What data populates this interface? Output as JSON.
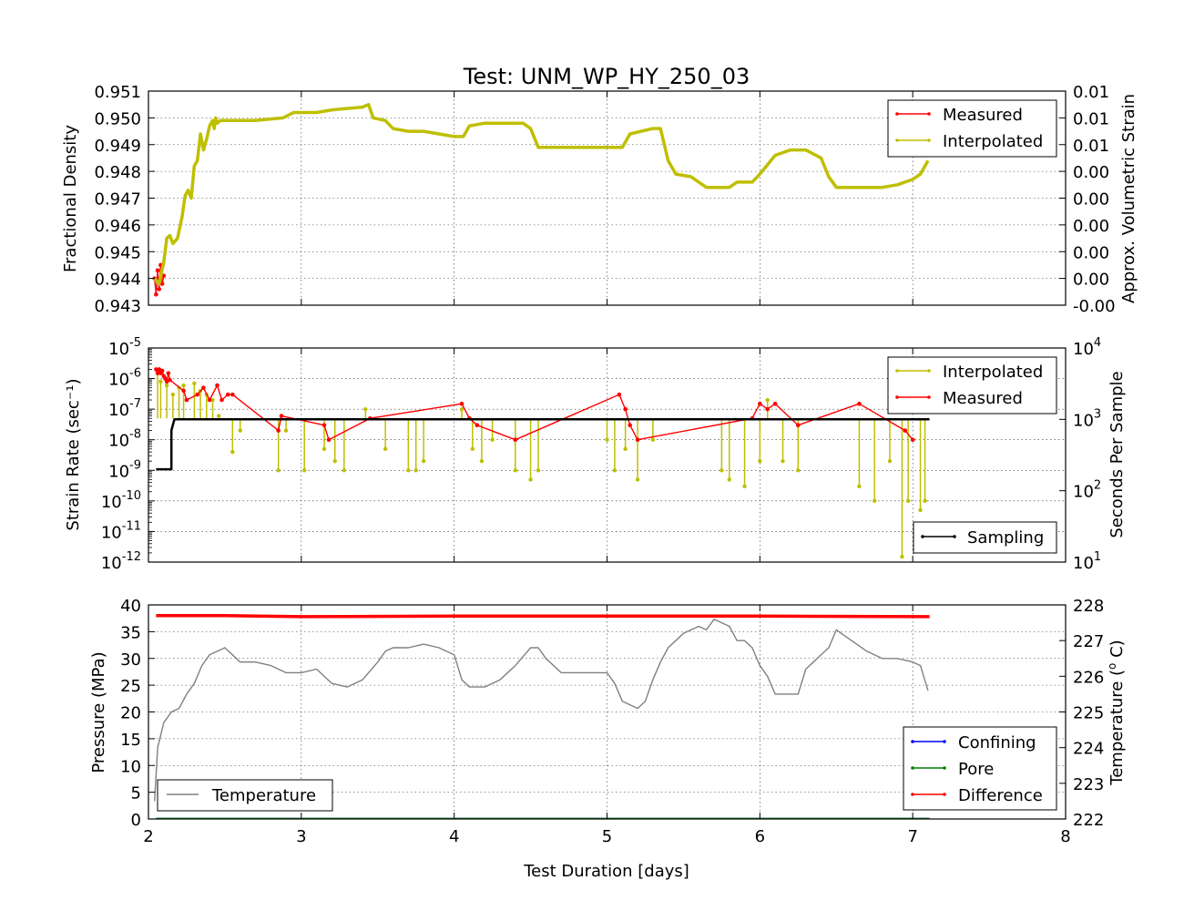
{
  "chart_data": [
    {
      "type": "line",
      "title": "Test: UNM_WP_HY_250_03",
      "ylabel": "Fractional Density",
      "y2label": "Approx. Volumetric Strain",
      "xlim": [
        2,
        8
      ],
      "ylim": [
        0.943,
        0.951
      ],
      "y_ticks": [
        "0.943",
        "0.944",
        "0.945",
        "0.946",
        "0.947",
        "0.948",
        "0.949",
        "0.950",
        "0.951"
      ],
      "y2_ticks": [
        "-0.00",
        "0.00",
        "0.00",
        "0.00",
        "0.00",
        "0.00",
        "0.01",
        "0.01",
        "0.01"
      ],
      "legend": {
        "position": "top-right",
        "entries": [
          "Measured",
          "Interpolated"
        ]
      },
      "grid": true,
      "series": [
        {
          "name": "Measured",
          "color": "#ff0000",
          "x": [
            2.04,
            2.05,
            2.06,
            2.07,
            2.08,
            2.09,
            2.1
          ],
          "y": [
            0.944,
            0.9434,
            0.9443,
            0.9436,
            0.9445,
            0.9438,
            0.9441
          ]
        },
        {
          "name": "Interpolated",
          "color": "#bfbf00",
          "x": [
            2.04,
            2.07,
            2.1,
            2.12,
            2.14,
            2.16,
            2.19,
            2.22,
            2.24,
            2.26,
            2.28,
            2.3,
            2.32,
            2.34,
            2.36,
            2.38,
            2.4,
            2.42,
            2.43,
            2.44,
            2.45,
            2.47,
            2.49,
            2.51,
            2.55,
            2.7,
            2.88,
            2.95,
            3.1,
            3.2,
            3.4,
            3.44,
            3.47,
            3.55,
            3.6,
            3.7,
            3.8,
            4.0,
            4.06,
            4.1,
            4.2,
            4.3,
            4.45,
            4.5,
            4.55,
            4.8,
            4.99,
            5.1,
            5.15,
            5.3,
            5.35,
            5.4,
            5.45,
            5.55,
            5.6,
            5.65,
            5.8,
            5.85,
            5.95,
            6.0,
            6.1,
            6.2,
            6.3,
            6.4,
            6.45,
            6.5,
            6.6,
            6.8,
            6.9,
            7.0,
            7.05,
            7.1
          ],
          "y": [
            0.944,
            0.9438,
            0.9446,
            0.9455,
            0.9456,
            0.9453,
            0.9455,
            0.9463,
            0.9471,
            0.9473,
            0.947,
            0.9482,
            0.9484,
            0.9494,
            0.9488,
            0.9492,
            0.9497,
            0.9499,
            0.9496,
            0.95,
            0.9498,
            0.9499,
            0.9499,
            0.9499,
            0.9499,
            0.9499,
            0.95,
            0.9502,
            0.9502,
            0.9503,
            0.9504,
            0.9505,
            0.95,
            0.9499,
            0.9496,
            0.9495,
            0.9495,
            0.9493,
            0.9493,
            0.9497,
            0.9498,
            0.9498,
            0.9498,
            0.9496,
            0.9489,
            0.9489,
            0.9489,
            0.9489,
            0.9494,
            0.9496,
            0.9496,
            0.9484,
            0.9479,
            0.9478,
            0.9476,
            0.9474,
            0.9474,
            0.9476,
            0.9476,
            0.9479,
            0.9486,
            0.9488,
            0.9488,
            0.9485,
            0.9478,
            0.9474,
            0.9474,
            0.9474,
            0.9475,
            0.9477,
            0.9479,
            0.9484
          ]
        }
      ]
    },
    {
      "type": "line",
      "ylabel": "Strain Rate (sec⁻¹)",
      "y2label": "Seconds Per Sample",
      "xlim": [
        2,
        8
      ],
      "ylim": [
        1e-12,
        1e-05
      ],
      "y_scale": "log",
      "y_tick_exponents": [
        -12,
        -11,
        -10,
        -9,
        -8,
        -7,
        -6,
        -5
      ],
      "y2_scale": "log",
      "y2lim": [
        10,
        10000
      ],
      "y2_tick_exponents": [
        1,
        2,
        3,
        4
      ],
      "legend": [
        {
          "position": "top-right",
          "entries": [
            "Interpolated",
            "Measured"
          ]
        },
        {
          "position": "bottom-right",
          "entries": [
            "Sampling"
          ]
        }
      ],
      "grid": true,
      "series": [
        {
          "name": "Interpolated",
          "color": "#bfbf00",
          "style": "stems",
          "x": [
            2.06,
            2.08,
            2.12,
            2.16,
            2.2,
            2.23,
            2.3,
            2.34,
            2.38,
            2.42,
            2.46,
            2.55,
            2.6,
            2.85,
            2.9,
            3.02,
            3.15,
            3.22,
            3.28,
            3.42,
            3.55,
            3.7,
            3.75,
            3.8,
            4.05,
            4.12,
            4.18,
            4.25,
            4.4,
            4.5,
            4.55,
            5.0,
            5.05,
            5.12,
            5.2,
            5.3,
            5.75,
            5.8,
            5.9,
            6.0,
            6.05,
            6.15,
            6.25,
            6.65,
            6.75,
            6.85,
            6.93,
            6.97,
            7.05,
            7.08
          ],
          "y": [
            1.5e-06,
            8e-07,
            6e-07,
            3e-07,
            5e-07,
            6e-07,
            7e-07,
            4e-07,
            3e-07,
            2e-07,
            6e-08,
            4e-09,
            2e-08,
            1e-09,
            2e-08,
            1e-09,
            5e-09,
            2e-09,
            1e-09,
            1e-07,
            5e-09,
            1e-09,
            1e-09,
            2e-09,
            1e-07,
            5e-09,
            2e-09,
            1e-08,
            1e-09,
            5e-10,
            1e-09,
            1e-08,
            1e-09,
            5e-09,
            5e-10,
            1e-08,
            1e-09,
            5e-10,
            3e-10,
            2e-09,
            2e-07,
            2e-09,
            1e-09,
            3e-10,
            1e-10,
            2e-09,
            1.5e-12,
            1e-10,
            5e-11,
            1e-10
          ]
        },
        {
          "name": "Measured",
          "color": "#ff0000",
          "x": [
            2.05,
            2.06,
            2.07,
            2.08,
            2.09,
            2.1,
            2.11,
            2.12,
            2.13,
            2.14,
            2.23,
            2.25,
            2.32,
            2.36,
            2.4,
            2.45,
            2.48,
            2.52,
            2.55,
            2.85,
            2.87,
            3.15,
            3.18,
            3.45,
            4.05,
            4.1,
            4.15,
            4.4,
            5.08,
            5.12,
            5.15,
            5.2,
            5.95,
            6.0,
            6.05,
            6.1,
            6.25,
            6.65,
            6.95,
            7.0
          ],
          "y": [
            2e-06,
            1.5e-06,
            2e-06,
            1.5e-06,
            1.8e-06,
            1.2e-06,
            1e-06,
            8e-07,
            1.5e-06,
            9e-07,
            4e-07,
            2e-07,
            3e-07,
            5e-07,
            2e-07,
            6e-07,
            2e-07,
            3e-07,
            3e-07,
            2e-08,
            6e-08,
            3e-08,
            1e-08,
            5e-08,
            1.5e-07,
            5e-08,
            3e-08,
            1e-08,
            3e-07,
            1e-07,
            3e-08,
            1e-08,
            5e-08,
            1.5e-07,
            1e-07,
            1.5e-07,
            3e-08,
            1.5e-07,
            2e-08,
            1e-08
          ]
        },
        {
          "name": "Sampling",
          "color": "#000000",
          "axis": "right",
          "x": [
            2.05,
            2.15,
            2.15,
            2.17,
            7.11
          ],
          "y": [
            200,
            200,
            700,
            1000,
            1000
          ]
        }
      ]
    },
    {
      "type": "line",
      "xlabel": "Test Duration [days]",
      "ylabel": "Pressure (MPa)",
      "y2label": "Temperature (°C)",
      "y2_unit_prefix": "Temperature (",
      "y2_unit_sup": "o",
      "y2_unit_suffix": " C)",
      "xlim": [
        2,
        8
      ],
      "x_ticks": [
        "2",
        "3",
        "4",
        "5",
        "6",
        "7",
        "8"
      ],
      "ylim": [
        0,
        40
      ],
      "y_ticks": [
        "0",
        "5",
        "10",
        "15",
        "20",
        "25",
        "30",
        "35",
        "40"
      ],
      "y2lim": [
        222,
        228
      ],
      "y2_ticks": [
        "222",
        "223",
        "224",
        "225",
        "226",
        "227",
        "228"
      ],
      "legend": [
        {
          "position": "bottom-left",
          "entries": [
            "Temperature"
          ]
        },
        {
          "position": "bottom-right",
          "entries": [
            "Confining",
            "Pore",
            "Difference"
          ]
        }
      ],
      "grid": true,
      "series": [
        {
          "name": "Confining",
          "color": "#0000ff",
          "x": [
            2.05,
            7.11
          ],
          "y": [
            0.1,
            0.1
          ]
        },
        {
          "name": "Pore",
          "color": "#008000",
          "x": [
            2.05,
            7.11
          ],
          "y": [
            0.1,
            0.1
          ]
        },
        {
          "name": "Difference",
          "color": "#ff0000",
          "x": [
            2.05,
            2.5,
            3.0,
            4.0,
            5.0,
            6.0,
            7.11
          ],
          "y": [
            38.0,
            38.0,
            37.8,
            37.9,
            37.9,
            37.9,
            37.8
          ]
        },
        {
          "name": "Temperature",
          "color": "#808080",
          "axis": "right",
          "x": [
            2.04,
            2.06,
            2.1,
            2.15,
            2.2,
            2.25,
            2.3,
            2.35,
            2.4,
            2.45,
            2.5,
            2.55,
            2.6,
            2.7,
            2.8,
            2.9,
            3.0,
            3.1,
            3.2,
            3.3,
            3.4,
            3.5,
            3.55,
            3.6,
            3.7,
            3.8,
            3.9,
            4.0,
            4.05,
            4.1,
            4.2,
            4.3,
            4.4,
            4.5,
            4.55,
            4.6,
            4.7,
            4.8,
            4.9,
            5.0,
            5.05,
            5.1,
            5.2,
            5.25,
            5.3,
            5.35,
            5.4,
            5.45,
            5.5,
            5.6,
            5.65,
            5.7,
            5.8,
            5.85,
            5.9,
            5.95,
            6.0,
            6.05,
            6.1,
            6.2,
            6.25,
            6.3,
            6.35,
            6.4,
            6.45,
            6.5,
            6.6,
            6.7,
            6.8,
            6.9,
            7.0,
            7.05,
            7.1
          ],
          "y": [
            222.5,
            224.0,
            224.7,
            225.0,
            225.1,
            225.5,
            225.8,
            226.3,
            226.6,
            226.7,
            226.8,
            226.6,
            226.4,
            226.4,
            226.3,
            226.1,
            226.1,
            226.2,
            225.8,
            225.7,
            225.9,
            226.4,
            226.7,
            226.8,
            226.8,
            226.9,
            226.8,
            226.6,
            225.9,
            225.7,
            225.7,
            225.9,
            226.3,
            226.8,
            226.8,
            226.5,
            226.1,
            226.1,
            226.1,
            226.1,
            225.8,
            225.3,
            225.1,
            225.3,
            225.9,
            226.4,
            226.8,
            227.0,
            227.2,
            227.4,
            227.3,
            227.6,
            227.4,
            227.0,
            227.0,
            226.8,
            226.3,
            226.0,
            225.5,
            225.5,
            225.5,
            226.2,
            226.4,
            226.6,
            226.8,
            227.3,
            227.0,
            226.7,
            226.5,
            226.5,
            226.4,
            226.3,
            225.6
          ]
        }
      ]
    }
  ]
}
